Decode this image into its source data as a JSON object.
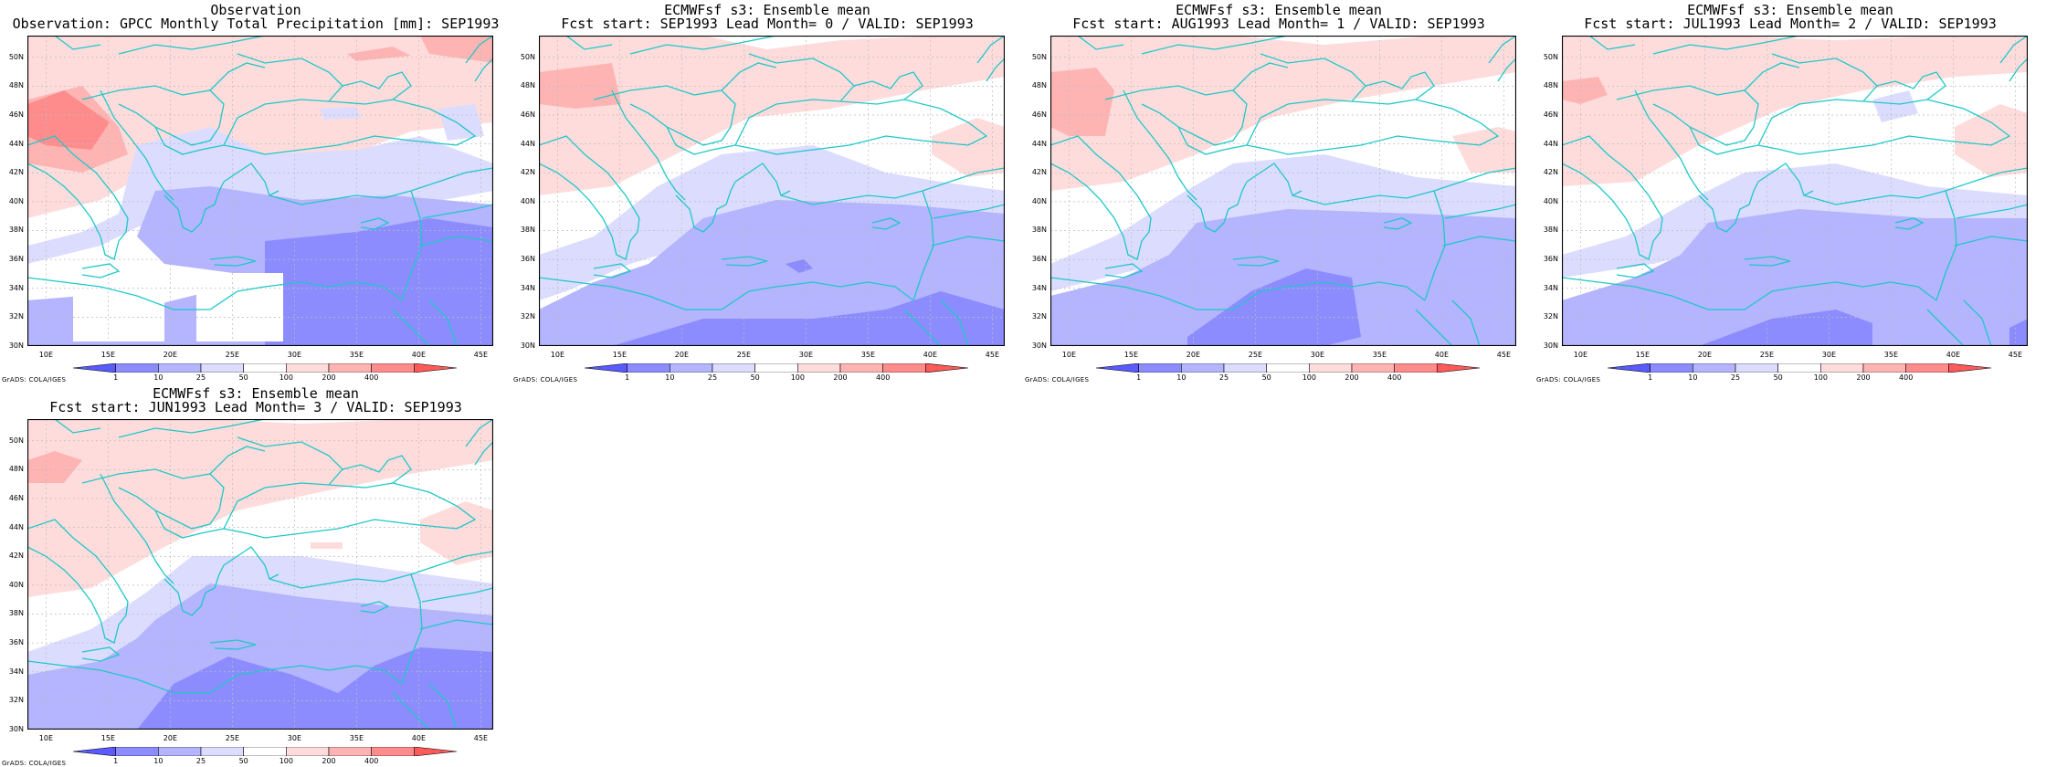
{
  "panels": [
    {
      "title1": "Observation",
      "title2": "Observation: GPCC Monthly Total Precipitation [mm]: SEP1993",
      "variant": "obs"
    },
    {
      "title1": "ECMWFsf s3: Ensemble mean",
      "title2": "Fcst start: SEP1993  Lead Month= 0 / VALID: SEP1993",
      "variant": "lead0"
    },
    {
      "title1": "ECMWFsf s3: Ensemble mean",
      "title2": "Fcst start: AUG1993  Lead Month= 1 / VALID: SEP1993",
      "variant": "lead1"
    },
    {
      "title1": "ECMWFsf s3: Ensemble mean",
      "title2": "Fcst start: JUL1993  Lead Month= 2 / VALID: SEP1993",
      "variant": "lead2"
    },
    {
      "title1": "ECMWFsf s3: Ensemble mean",
      "title2": "Fcst start: JUN1993  Lead Month= 3 / VALID: SEP1993",
      "variant": "lead3"
    }
  ],
  "lat_labels": [
    "50N",
    "48N",
    "46N",
    "44N",
    "42N",
    "40N",
    "38N",
    "36N",
    "34N",
    "32N",
    "30N"
  ],
  "lon_labels": [
    "10E",
    "15E",
    "20E",
    "25E",
    "30E",
    "35E",
    "40E",
    "45E"
  ],
  "colorbar": {
    "labels": [
      "1",
      "10",
      "25",
      "50",
      "100",
      "200",
      "400"
    ],
    "colors": [
      "#5a5aff",
      "#8c8cff",
      "#b4b4ff",
      "#dcdcff",
      "#ffffff",
      "#ffdcdc",
      "#ffb4b4",
      "#ff8c8c",
      "#ff5a5a"
    ]
  },
  "credit": "GrADS: COLA/IGES",
  "colors": {
    "coast": "#1ec8c8",
    "grid": "#bbbbbb",
    "frame": "#000000"
  }
}
